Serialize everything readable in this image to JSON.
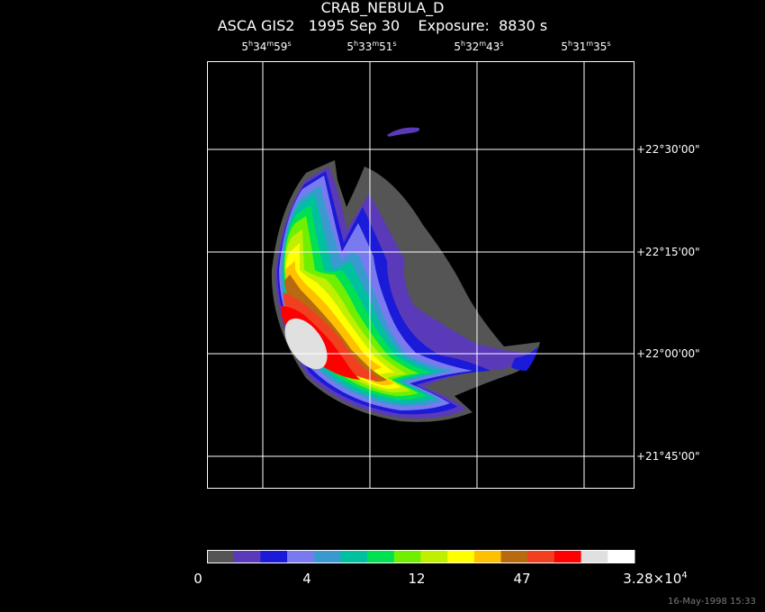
{
  "header": {
    "target": "CRAB_NEBULA_D",
    "line2": "ASCA GIS2   1995 Sep 30    Exposure:  8830 s"
  },
  "ra_ticks": [
    {
      "h": "5",
      "m": "34",
      "s": "59"
    },
    {
      "h": "5",
      "m": "33",
      "s": "51"
    },
    {
      "h": "5",
      "m": "32",
      "s": "43"
    },
    {
      "h": "5",
      "m": "31",
      "s": "35"
    }
  ],
  "dec_ticks": [
    "+22°30'00\"",
    "+22°15'00\"",
    "+22°00'00\"",
    "+21°45'00\""
  ],
  "colorbar": {
    "labels": [
      "0",
      "4",
      "12",
      "47"
    ],
    "max_label": "3.28×10",
    "max_exp": "4",
    "colors": [
      "#555555",
      "#5a3ab8",
      "#1a1ad8",
      "#7a7af0",
      "#3a9ad0",
      "#00c0a0",
      "#00e050",
      "#70f000",
      "#c0f000",
      "#ffff00",
      "#ffc000",
      "#b86a10",
      "#f04020",
      "#ff0000",
      "#e0e0e0",
      "#ffffff"
    ]
  },
  "timestamp": "16-May-1998 15:33"
}
